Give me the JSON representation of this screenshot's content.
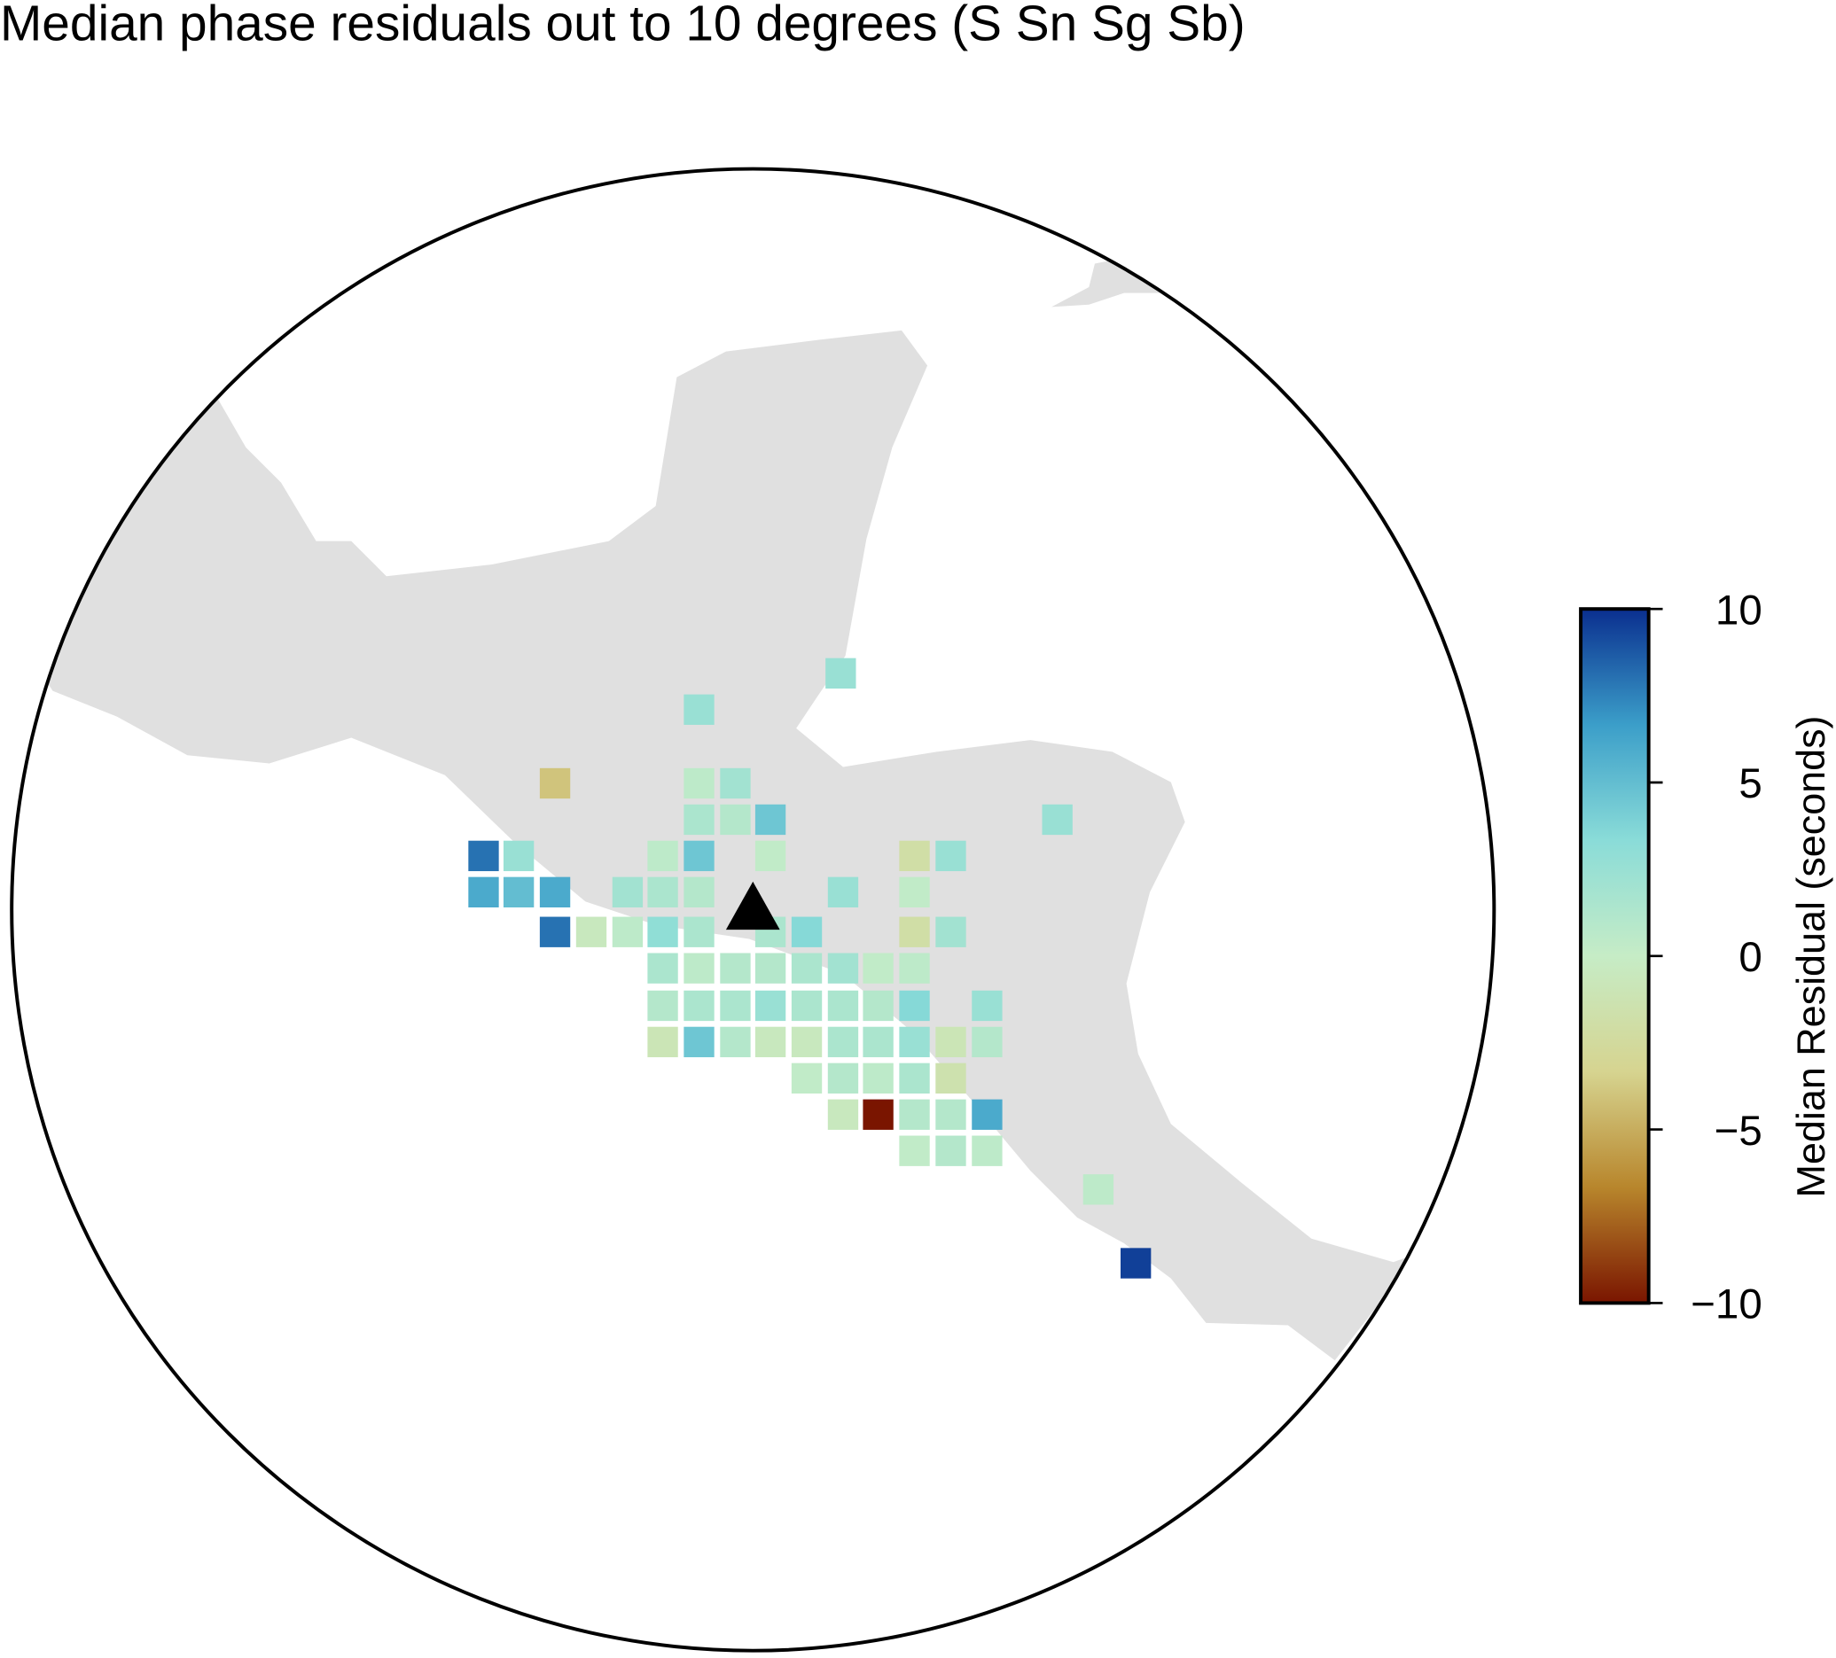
{
  "chart_data": {
    "type": "map",
    "title": "Median phase residuals out to 10 degrees (S Sn Sg Sb)",
    "colorbar_label": "Median Residual (seconds)",
    "clim": [
      -10,
      10
    ],
    "cticks": [
      {
        "value": -10,
        "label": "−10"
      },
      {
        "value": -5,
        "label": "−5"
      },
      0,
      5,
      10
    ],
    "colormap": [
      "#7a1500",
      "#b8862c",
      "#d6d490",
      "#c6ecc6",
      "#8adcd8",
      "#3b9ec9",
      "#0a2f8f"
    ],
    "values": [
      2.5,
      2.5,
      -4,
      0.5,
      2,
      1.5,
      1,
      4.5,
      2.5,
      8,
      2.5,
      0.5,
      4.5,
      0.3,
      -2,
      2.5,
      6,
      5,
      6,
      2,
      1.5,
      1,
      2.5,
      0.3,
      8,
      -0.5,
      0.5,
      3,
      1.5,
      1.5,
      3.5,
      -2,
      2,
      1.5,
      0.5,
      1,
      1,
      1.5,
      2,
      0.3,
      0.5,
      1,
      1.5,
      1.5,
      2.5,
      1.5,
      1.5,
      1,
      3.5,
      2.5,
      -1,
      4.5,
      1,
      -0.5,
      -0.5,
      1.5,
      1.5,
      2.5,
      -1,
      1,
      0.3,
      1,
      0.5,
      1.5,
      -1.5,
      -0.5,
      -10,
      1,
      1,
      6,
      0.3,
      1,
      0.5,
      0.5,
      9.5
    ]
  }
}
